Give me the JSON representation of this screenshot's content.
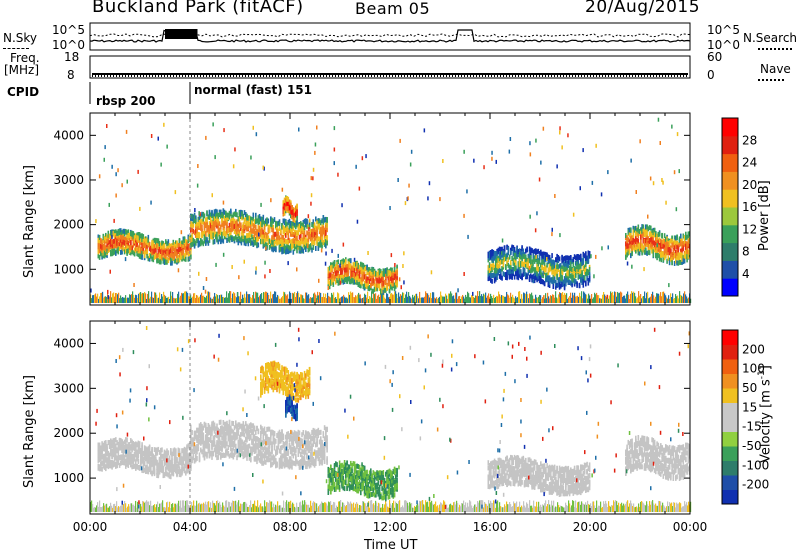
{
  "header": {
    "site": "Buckland Park (fitACF)",
    "beam": "Beam 05",
    "date": "20/Aug/2015"
  },
  "top_panels": {
    "nsky_label": "N.Sky",
    "nsearch_label": "N.Search",
    "noise_ticks_left": [
      "10^5",
      "10^0"
    ],
    "noise_ticks_right": [
      "10^5",
      "10^0"
    ],
    "freq_label_1": "Freq.",
    "freq_label_2": "[MHz]",
    "freq_ticks": [
      "18",
      "8"
    ],
    "nave_label": "Nave",
    "nave_ticks": [
      "60",
      "0"
    ],
    "cpid_label": "CPID",
    "cpid_segments": [
      "rbsp 200",
      "normal (fast) 151"
    ]
  },
  "colorbars": {
    "power": {
      "title": "Power [dB]",
      "ticks": [
        "28",
        "24",
        "20",
        "16",
        "12",
        "8",
        "4"
      ],
      "colors": [
        "#0000ff",
        "#1f4fa8",
        "#2e7d6b",
        "#3aa05a",
        "#9cc83c",
        "#f0c020",
        "#f09020",
        "#f06010",
        "#e02010",
        "#ff0000"
      ]
    },
    "velocity": {
      "title": "Velocity [m s^-1]",
      "ticks": [
        "200",
        "100",
        "50",
        "15",
        "-15",
        "-50",
        "-100",
        "-200"
      ],
      "colors": [
        "#1030b0",
        "#1f4fa8",
        "#2e7d6b",
        "#3aa05a",
        "#90d040",
        "#c8c8c8",
        "#c8c8c8",
        "#f0c020",
        "#f09020",
        "#f06010",
        "#e02010",
        "#ff0000"
      ]
    }
  },
  "chart_data": [
    {
      "type": "heatmap",
      "name": "power",
      "ylabel": "Slant Range [km]",
      "y_ticks": [
        "4000",
        "3000",
        "2000",
        "1000"
      ],
      "ylim": [
        200,
        4500
      ],
      "xlim": [
        "00:00",
        "24:00"
      ],
      "features": [
        {
          "t_start": 0.3,
          "t_end": 4.0,
          "range_center": 1550,
          "range_width": 500,
          "power_db": 26
        },
        {
          "t_start": 4.0,
          "t_end": 9.5,
          "range_center": 1900,
          "range_width": 700,
          "power_db": 24
        },
        {
          "t_start": 7.7,
          "t_end": 8.3,
          "range_center": 2400,
          "range_width": 300,
          "power_db": 30
        },
        {
          "t_start": 9.5,
          "t_end": 12.3,
          "range_center": 900,
          "range_width": 500,
          "power_db": 26
        },
        {
          "t_start": 15.9,
          "t_end": 20.0,
          "range_center": 1100,
          "range_width": 700,
          "power_db": 18
        },
        {
          "t_start": 21.4,
          "t_end": 24.0,
          "range_center": 1600,
          "range_width": 600,
          "power_db": 26
        }
      ]
    },
    {
      "type": "heatmap",
      "name": "velocity",
      "ylabel": "Slant Range [km]",
      "y_ticks": [
        "4000",
        "3000",
        "2000",
        "1000"
      ],
      "ylim": [
        200,
        4500
      ],
      "xlim": [
        "00:00",
        "24:00"
      ],
      "xlabel": "Time UT",
      "x_ticks": [
        "00:00",
        "04:00",
        "08:00",
        "12:00",
        "16:00",
        "20:00",
        "00:00"
      ],
      "features": [
        {
          "t_start": 0.3,
          "t_end": 4.0,
          "range_center": 1500,
          "range_width": 600,
          "velocity": 0
        },
        {
          "t_start": 4.0,
          "t_end": 9.5,
          "range_center": 1800,
          "range_width": 800,
          "velocity": 0
        },
        {
          "t_start": 6.8,
          "t_end": 8.8,
          "range_center": 3200,
          "range_width": 600,
          "velocity": -40
        },
        {
          "t_start": 7.8,
          "t_end": 8.3,
          "range_center": 2600,
          "range_width": 300,
          "velocity": 150
        },
        {
          "t_start": 9.5,
          "t_end": 12.3,
          "range_center": 1000,
          "range_width": 600,
          "velocity": 30
        },
        {
          "t_start": 15.9,
          "t_end": 20.0,
          "range_center": 1100,
          "range_width": 600,
          "velocity": 0
        },
        {
          "t_start": 21.4,
          "t_end": 24.0,
          "range_center": 1500,
          "range_width": 700,
          "velocity": 0
        }
      ]
    }
  ]
}
